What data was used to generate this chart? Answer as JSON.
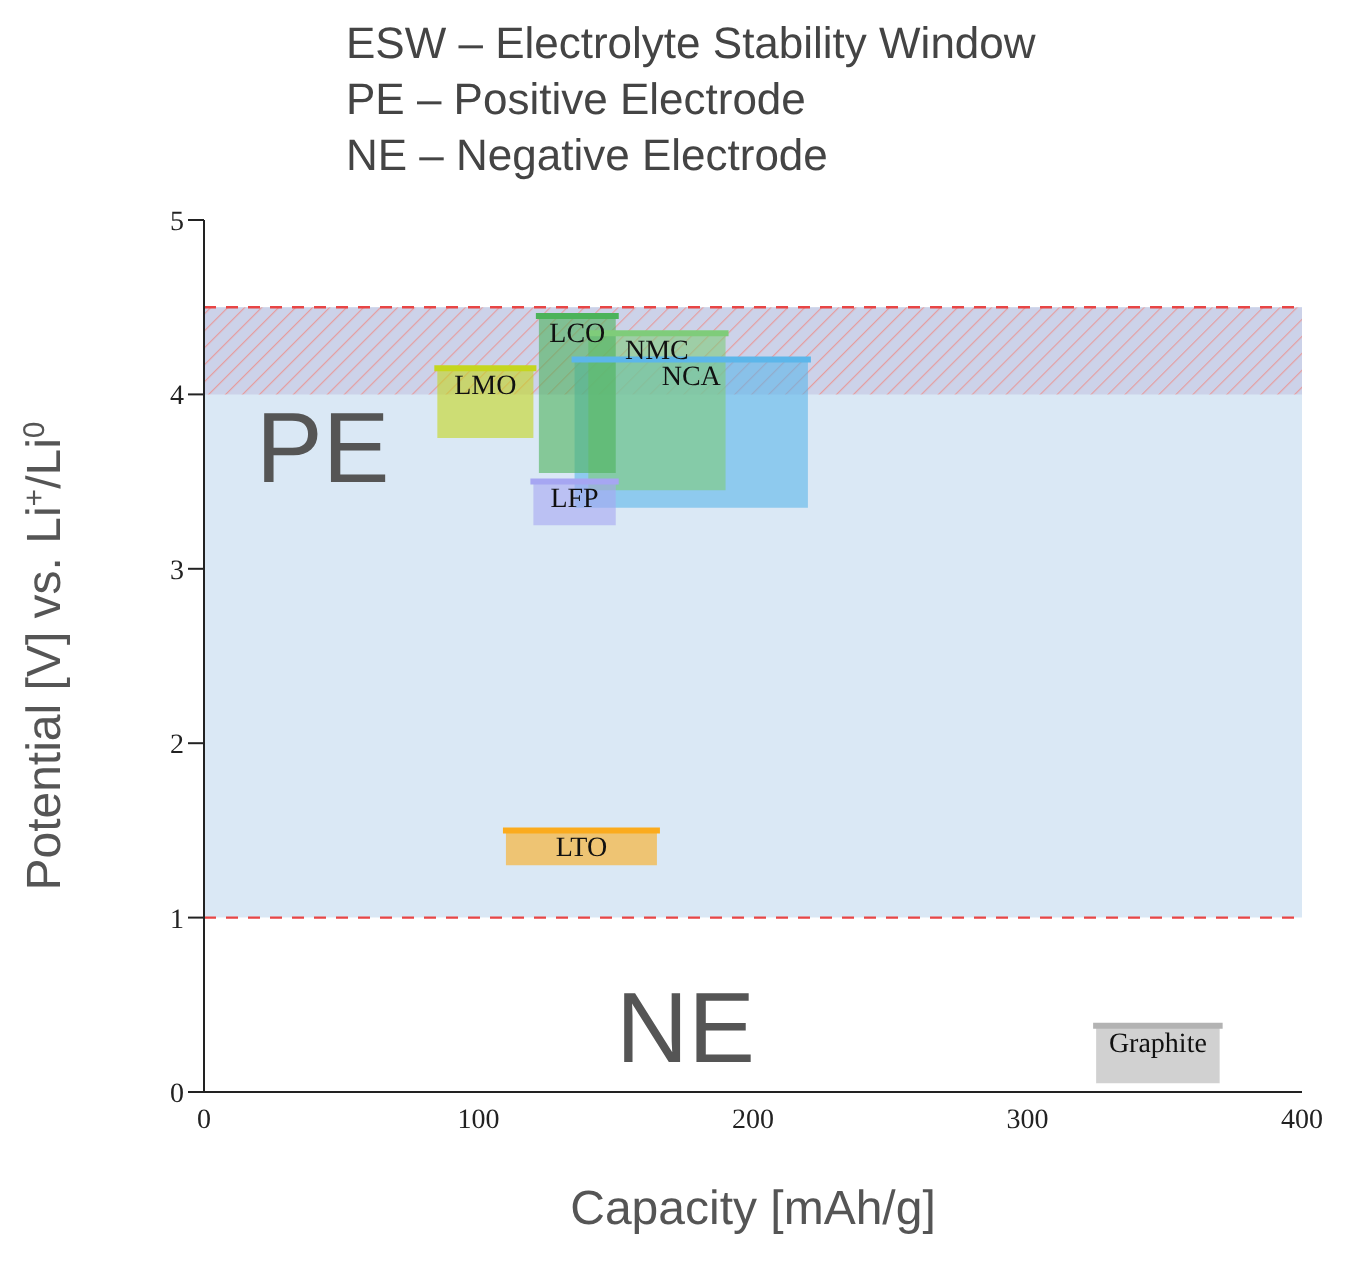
{
  "chart_data": {
    "type": "line",
    "title": "ESW – Electrolyte Stability Window",
    "annotations": [
      "PE – Positive Electrode",
      "NE – Negative Electrode",
      "PE",
      "NE"
    ],
    "xlabel": "Capacity [mAh/g]",
    "ylabel": "Potential [V] vs. Li$^{+}$/Li$^{0}$",
    "xlim": [
      0,
      400
    ],
    "xticks": [
      0,
      100,
      200,
      300,
      400
    ],
    "ylim": [
      0,
      5
    ],
    "yticks": [
      0,
      1,
      2,
      3,
      4,
      5
    ],
    "bands": [
      {
        "axis": "y",
        "from": 1,
        "to": 4.5,
        "color": "#d6e6f4"
      },
      {
        "axis": "y",
        "from": 4,
        "to": 4.5,
        "color": "#e88a8a"
      }
    ],
    "ref_lines": [
      {
        "axis": "y",
        "value": 1,
        "color": "#e84545",
        "line_style": "dashed"
      },
      {
        "axis": "y",
        "value": 4.5,
        "color": "#e84545",
        "line_style": "dashed"
      }
    ],
    "series": [
      {
        "name": "LMO",
        "color": "#c5d61e",
        "x": [
          85,
          120
        ],
        "lower": [
          3.75,
          3.75
        ],
        "upper": [
          4.15,
          4.15
        ],
        "values": [
          4.15,
          4.15
        ]
      },
      {
        "name": "NCA",
        "color": "#5cb6ea",
        "x": [
          135,
          220
        ],
        "lower": [
          3.35,
          3.35
        ],
        "upper": [
          4.2,
          4.2
        ],
        "values": [
          4.2,
          4.2
        ]
      },
      {
        "name": "NMC",
        "color": "#7fcc7a",
        "x": [
          140,
          190
        ],
        "lower": [
          3.45,
          3.45
        ],
        "upper": [
          4.35,
          4.35
        ],
        "values": [
          4.35,
          4.35
        ]
      },
      {
        "name": "LCO",
        "color": "#4cb35a",
        "x": [
          122,
          150
        ],
        "lower": [
          3.55,
          3.55
        ],
        "upper": [
          4.45,
          4.45
        ],
        "values": [
          4.45,
          4.45
        ]
      },
      {
        "name": "LFP",
        "color": "#a6a6f2",
        "x": [
          120,
          150
        ],
        "lower": [
          3.25,
          3.25
        ],
        "upper": [
          3.5,
          3.5
        ],
        "values": [
          3.5,
          3.5
        ]
      },
      {
        "name": "LTO",
        "color": "#fbab1d",
        "x": [
          110,
          165
        ],
        "lower": [
          1.3,
          1.3
        ],
        "upper": [
          1.5,
          1.5
        ],
        "values": [
          1.5,
          1.5
        ]
      },
      {
        "name": "Graphite",
        "color": "#b3b3b3",
        "x": [
          325,
          370
        ],
        "lower": [
          0.05,
          0.05
        ],
        "upper": [
          0.38,
          0.38
        ],
        "values": [
          0.38,
          0.38
        ]
      }
    ]
  }
}
